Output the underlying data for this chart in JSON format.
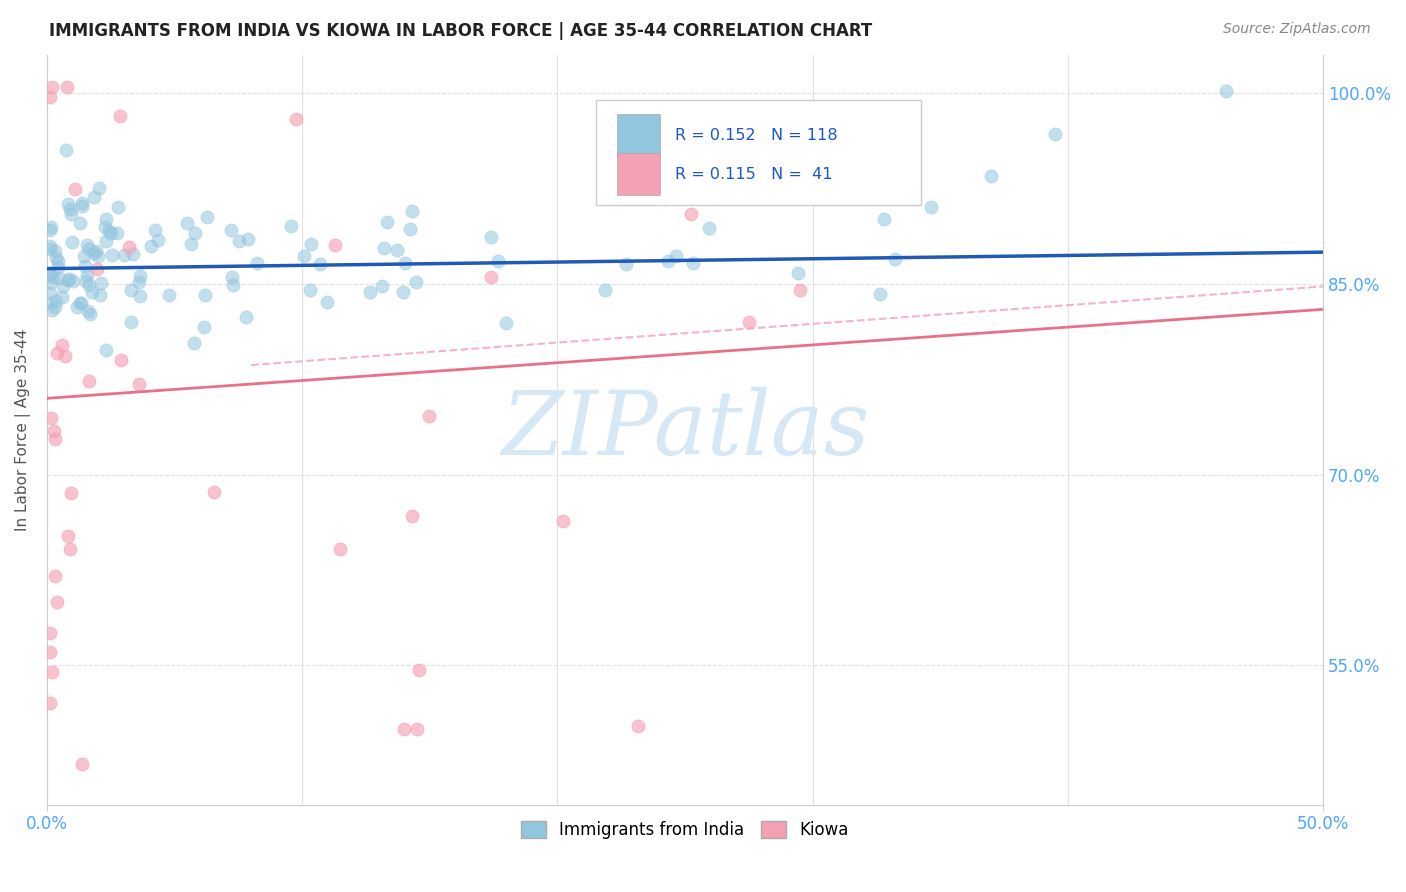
{
  "title": "IMMIGRANTS FROM INDIA VS KIOWA IN LABOR FORCE | AGE 35-44 CORRELATION CHART",
  "source": "Source: ZipAtlas.com",
  "ylabel": "In Labor Force | Age 35-44",
  "xlim": [
    0.0,
    0.5
  ],
  "ylim": [
    0.44,
    1.03
  ],
  "ytick_vals": [
    0.55,
    0.7,
    0.85,
    1.0
  ],
  "ytick_labels": [
    "55.0%",
    "70.0%",
    "85.0%",
    "100.0%"
  ],
  "xtick_vals": [
    0.0,
    0.5
  ],
  "xtick_labels": [
    "0.0%",
    "50.0%"
  ],
  "legend_r_blue": "0.152",
  "legend_n_blue": "118",
  "legend_r_pink": "0.115",
  "legend_n_pink": " 41",
  "blue_scatter_color": "#92c5de",
  "pink_scatter_color": "#f4a0b5",
  "trendline_blue_color": "#1f5bb5",
  "trendline_pink_color": "#e8708a",
  "trendline_dashed_color": "#f4a0b5",
  "watermark_color": "#d6e8f5",
  "legend_label_blue": "Immigrants from India",
  "legend_label_pink": "Kiowa",
  "grid_color": "#e0e0e0",
  "axis_label_color": "#555555",
  "tick_color": "#4da6ff",
  "title_color": "#222222",
  "source_color": "#888888",
  "blue_seed": 12,
  "pink_seed": 7
}
